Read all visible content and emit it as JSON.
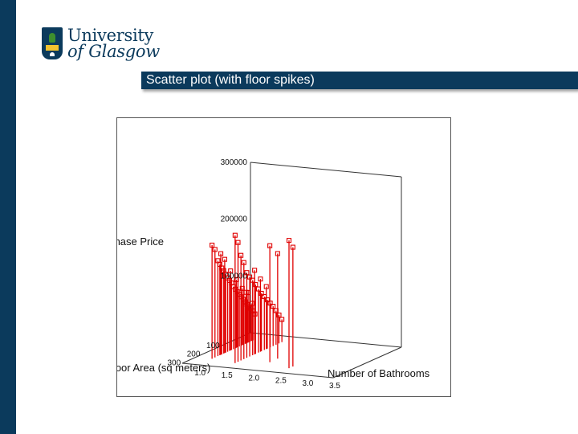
{
  "slide": {
    "title": "Scatter plot (with floor spikes)",
    "logo": {
      "line1": "University",
      "line2": "of Glasgow"
    }
  },
  "colors": {
    "band": "#0b3a5c",
    "points": "#e00000"
  },
  "chart_data": {
    "type": "scatter",
    "title": "",
    "zlabel": "Purchase Price",
    "xlabel": "Floor Area (sq meters)",
    "ylabel": "Number of Bathrooms",
    "x_ticks": [
      "100",
      "200",
      "300"
    ],
    "y_ticks": [
      "1.0",
      "1.5",
      "2.0",
      "2.5",
      "3.0",
      "3.5"
    ],
    "z_ticks": [
      "100000",
      "200000",
      "300000"
    ],
    "xlim": [
      0,
      350
    ],
    "ylim": [
      0.7,
      3.5
    ],
    "zlim": [
      0,
      300000
    ],
    "floor_spikes": true,
    "grid": false,
    "points": [
      {
        "x": 60,
        "y": 1.0,
        "z": 45000
      },
      {
        "x": 70,
        "y": 1.0,
        "z": 52000
      },
      {
        "x": 80,
        "y": 1.0,
        "z": 58000
      },
      {
        "x": 90,
        "y": 1.0,
        "z": 62000
      },
      {
        "x": 100,
        "y": 1.0,
        "z": 68000
      },
      {
        "x": 110,
        "y": 1.0,
        "z": 74000
      },
      {
        "x": 120,
        "y": 1.0,
        "z": 80000
      },
      {
        "x": 130,
        "y": 1.0,
        "z": 86000
      },
      {
        "x": 140,
        "y": 1.0,
        "z": 92000
      },
      {
        "x": 150,
        "y": 1.0,
        "z": 98000
      },
      {
        "x": 160,
        "y": 1.0,
        "z": 104000
      },
      {
        "x": 170,
        "y": 1.0,
        "z": 110000
      },
      {
        "x": 180,
        "y": 1.0,
        "z": 118000
      },
      {
        "x": 190,
        "y": 1.0,
        "z": 124000
      },
      {
        "x": 200,
        "y": 1.0,
        "z": 130000
      },
      {
        "x": 210,
        "y": 1.0,
        "z": 138000
      },
      {
        "x": 220,
        "y": 1.0,
        "z": 146000
      },
      {
        "x": 230,
        "y": 1.0,
        "z": 152000
      },
      {
        "x": 240,
        "y": 1.0,
        "z": 160000
      },
      {
        "x": 250,
        "y": 1.0,
        "z": 168000
      },
      {
        "x": 95,
        "y": 1.0,
        "z": 88000
      },
      {
        "x": 125,
        "y": 1.0,
        "z": 100000
      },
      {
        "x": 155,
        "y": 1.0,
        "z": 120000
      },
      {
        "x": 185,
        "y": 1.0,
        "z": 140000
      },
      {
        "x": 215,
        "y": 1.0,
        "z": 165000
      },
      {
        "x": 235,
        "y": 1.0,
        "z": 178000
      },
      {
        "x": 265,
        "y": 1.0,
        "z": 190000
      },
      {
        "x": 280,
        "y": 1.0,
        "z": 200000
      },
      {
        "x": 75,
        "y": 1.0,
        "z": 66000
      },
      {
        "x": 105,
        "y": 1.0,
        "z": 90000
      },
      {
        "x": 60,
        "y": 1.5,
        "z": 40000
      },
      {
        "x": 75,
        "y": 1.5,
        "z": 50000
      },
      {
        "x": 90,
        "y": 1.5,
        "z": 60000
      },
      {
        "x": 105,
        "y": 1.5,
        "z": 70000
      },
      {
        "x": 120,
        "y": 1.5,
        "z": 78000
      },
      {
        "x": 135,
        "y": 1.5,
        "z": 86000
      },
      {
        "x": 150,
        "y": 1.5,
        "z": 94000
      },
      {
        "x": 165,
        "y": 1.5,
        "z": 102000
      },
      {
        "x": 180,
        "y": 1.5,
        "z": 112000
      },
      {
        "x": 195,
        "y": 1.5,
        "z": 122000
      },
      {
        "x": 210,
        "y": 1.5,
        "z": 132000
      },
      {
        "x": 225,
        "y": 1.5,
        "z": 140000
      },
      {
        "x": 240,
        "y": 1.5,
        "z": 150000
      },
      {
        "x": 255,
        "y": 1.5,
        "z": 170000
      },
      {
        "x": 270,
        "y": 1.5,
        "z": 185000
      },
      {
        "x": 285,
        "y": 1.5,
        "z": 210000
      },
      {
        "x": 300,
        "y": 1.5,
        "z": 225000
      },
      {
        "x": 140,
        "y": 1.5,
        "z": 110000
      },
      {
        "x": 170,
        "y": 1.5,
        "z": 128000
      },
      {
        "x": 200,
        "y": 1.5,
        "z": 148000
      },
      {
        "x": 220,
        "y": 2.0,
        "z": 185000
      },
      {
        "x": 260,
        "y": 2.0,
        "z": 205000
      },
      {
        "x": 280,
        "y": 2.5,
        "z": 210000
      },
      {
        "x": 300,
        "y": 2.5,
        "z": 225000
      }
    ]
  }
}
